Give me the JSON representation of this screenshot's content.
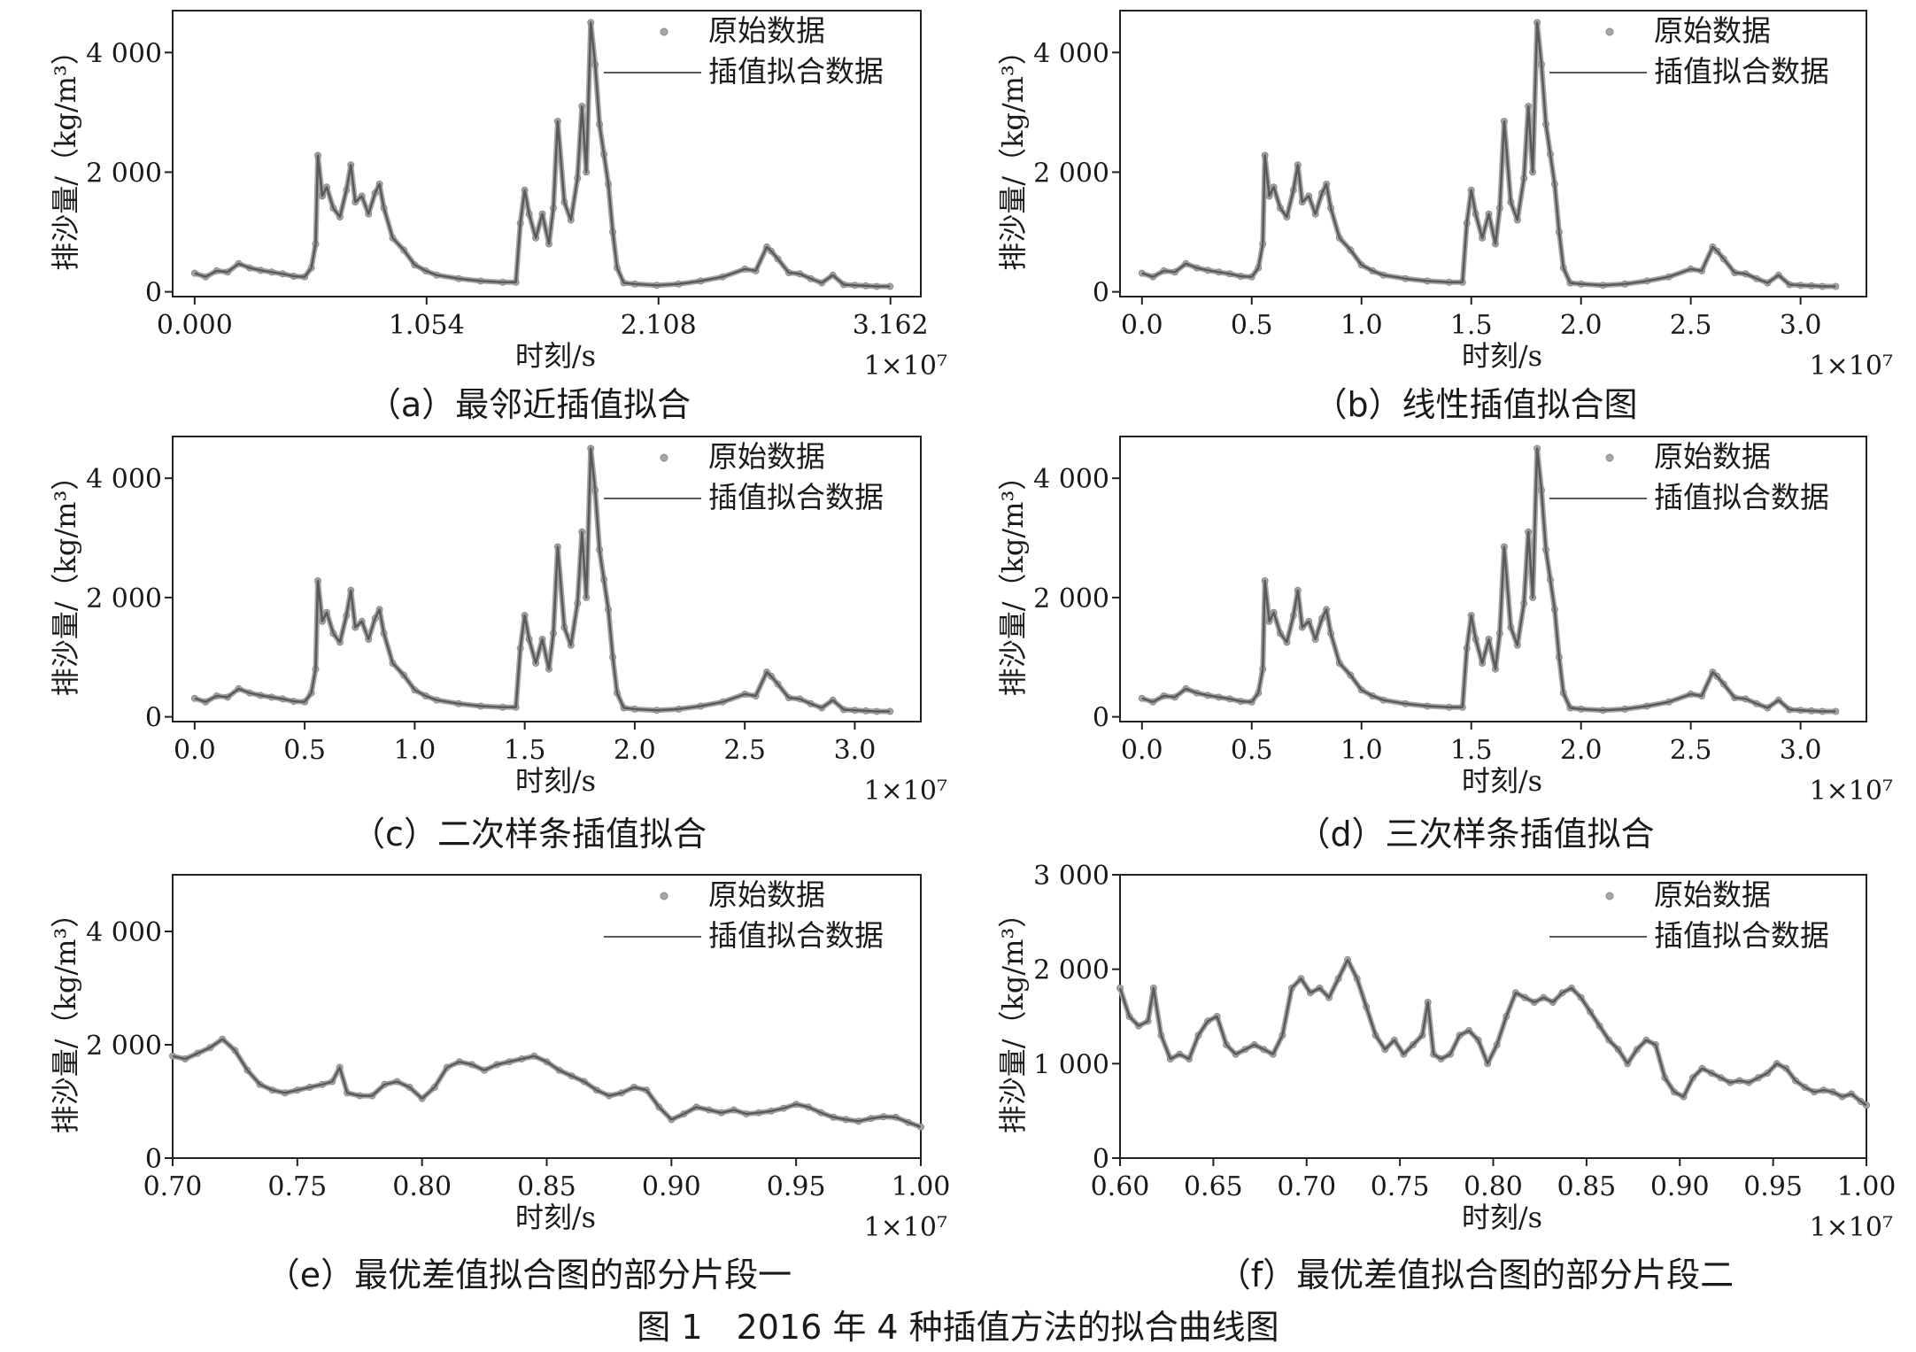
{
  "figure_title": "图 1　2016 年 4 种插值方法的拟合曲线图",
  "colors": {
    "raw": "#a6a6a6",
    "fit": "#5a5a5a",
    "axis": "#222222"
  },
  "chart_data": [
    {
      "id": "a",
      "caption": "（a）最邻近插值拟合",
      "type": "line",
      "xlabel": "时刻/s",
      "ylabel": "排沙量/（kg/m³）",
      "x_multiplier": "1×10⁷",
      "xlim": [
        -0.1,
        3.3
      ],
      "ylim": [
        -80,
        4700
      ],
      "x_ticks": [
        0.0,
        1.054,
        2.108,
        3.162
      ],
      "x_tick_labels": [
        "0.000",
        "1.054",
        "2.108",
        "3.162"
      ],
      "y_ticks": [
        0,
        2000,
        4000
      ],
      "y_tick_labels": [
        "0",
        "2 000",
        "4 000"
      ],
      "legend": [
        "原始数据",
        "插值拟合数据"
      ],
      "legend_position": "top-right",
      "series": [
        {
          "name": "原始数据",
          "style": "markers"
        },
        {
          "name": "插值拟合数据",
          "style": "line"
        }
      ],
      "x": [
        0.0,
        0.05,
        0.1,
        0.15,
        0.2,
        0.25,
        0.3,
        0.35,
        0.4,
        0.45,
        0.5,
        0.53,
        0.55,
        0.56,
        0.58,
        0.6,
        0.63,
        0.66,
        0.69,
        0.71,
        0.73,
        0.76,
        0.79,
        0.82,
        0.84,
        0.86,
        0.9,
        0.95,
        1.0,
        1.05,
        1.1,
        1.2,
        1.3,
        1.4,
        1.46,
        1.48,
        1.5,
        1.52,
        1.55,
        1.58,
        1.61,
        1.63,
        1.65,
        1.68,
        1.71,
        1.74,
        1.76,
        1.78,
        1.8,
        1.82,
        1.84,
        1.86,
        1.88,
        1.9,
        1.92,
        1.95,
        2.0,
        2.1,
        2.2,
        2.3,
        2.4,
        2.5,
        2.55,
        2.6,
        2.62,
        2.65,
        2.7,
        2.75,
        2.8,
        2.85,
        2.9,
        2.95,
        3.0,
        3.05,
        3.1,
        3.16
      ],
      "y": [
        310,
        250,
        350,
        330,
        470,
        400,
        360,
        330,
        300,
        260,
        250,
        400,
        800,
        2280,
        1600,
        1750,
        1400,
        1250,
        1700,
        2120,
        1500,
        1600,
        1300,
        1650,
        1800,
        1400,
        900,
        700,
        450,
        350,
        280,
        220,
        180,
        160,
        160,
        1150,
        1700,
        1300,
        900,
        1300,
        800,
        1400,
        2850,
        1500,
        1200,
        1900,
        3100,
        2000,
        4500,
        3800,
        2800,
        2300,
        1800,
        1000,
        400,
        150,
        130,
        110,
        130,
        180,
        250,
        380,
        350,
        750,
        680,
        550,
        320,
        300,
        220,
        150,
        280,
        120,
        110,
        100,
        90,
        90
      ]
    },
    {
      "id": "b",
      "caption": "（b）线性插值拟合图",
      "type": "line",
      "xlabel": "时刻/s",
      "ylabel": "排沙量/（kg/m³）",
      "x_multiplier": "1×10⁷",
      "xlim": [
        -0.1,
        3.3
      ],
      "ylim": [
        -80,
        4700
      ],
      "x_ticks": [
        0.0,
        0.5,
        1.0,
        1.5,
        2.0,
        2.5,
        3.0
      ],
      "x_tick_labels": [
        "0.0",
        "0.5",
        "1.0",
        "1.5",
        "2.0",
        "2.5",
        "3.0"
      ],
      "y_ticks": [
        0,
        2000,
        4000
      ],
      "y_tick_labels": [
        "0",
        "2 000",
        "4 000"
      ],
      "legend": [
        "原始数据",
        "插值拟合数据"
      ],
      "legend_position": "top-right",
      "series": [
        {
          "name": "原始数据",
          "style": "markers"
        },
        {
          "name": "插值拟合数据",
          "style": "line"
        }
      ],
      "x": [
        0.0,
        0.05,
        0.1,
        0.15,
        0.2,
        0.25,
        0.3,
        0.35,
        0.4,
        0.45,
        0.5,
        0.53,
        0.55,
        0.56,
        0.58,
        0.6,
        0.63,
        0.66,
        0.69,
        0.71,
        0.73,
        0.76,
        0.79,
        0.82,
        0.84,
        0.86,
        0.9,
        0.95,
        1.0,
        1.05,
        1.1,
        1.2,
        1.3,
        1.4,
        1.46,
        1.48,
        1.5,
        1.52,
        1.55,
        1.58,
        1.61,
        1.63,
        1.65,
        1.68,
        1.71,
        1.74,
        1.76,
        1.78,
        1.8,
        1.82,
        1.84,
        1.86,
        1.88,
        1.9,
        1.92,
        1.95,
        2.0,
        2.1,
        2.2,
        2.3,
        2.4,
        2.5,
        2.55,
        2.6,
        2.62,
        2.65,
        2.7,
        2.75,
        2.8,
        2.85,
        2.9,
        2.95,
        3.0,
        3.05,
        3.1,
        3.16
      ],
      "y": [
        310,
        250,
        350,
        330,
        470,
        400,
        360,
        330,
        300,
        260,
        250,
        400,
        800,
        2280,
        1600,
        1750,
        1400,
        1250,
        1700,
        2120,
        1500,
        1600,
        1300,
        1650,
        1800,
        1400,
        900,
        700,
        450,
        350,
        280,
        220,
        180,
        160,
        160,
        1150,
        1700,
        1300,
        900,
        1300,
        800,
        1400,
        2850,
        1500,
        1200,
        1900,
        3100,
        2000,
        4500,
        3800,
        2800,
        2300,
        1800,
        1000,
        400,
        150,
        130,
        110,
        130,
        180,
        250,
        380,
        350,
        750,
        680,
        550,
        320,
        300,
        220,
        150,
        280,
        120,
        110,
        100,
        90,
        90
      ]
    },
    {
      "id": "c",
      "caption": "（c）二次样条插值拟合",
      "type": "line",
      "xlabel": "时刻/s",
      "ylabel": "排沙量/（kg/m³）",
      "x_multiplier": "1×10⁷",
      "xlim": [
        -0.1,
        3.3
      ],
      "ylim": [
        -80,
        4700
      ],
      "x_ticks": [
        0.0,
        0.5,
        1.0,
        1.5,
        2.0,
        2.5,
        3.0
      ],
      "x_tick_labels": [
        "0.0",
        "0.5",
        "1.0",
        "1.5",
        "2.0",
        "2.5",
        "3.0"
      ],
      "y_ticks": [
        0,
        2000,
        4000
      ],
      "y_tick_labels": [
        "0",
        "2 000",
        "4 000"
      ],
      "legend": [
        "原始数据",
        "插值拟合数据"
      ],
      "legend_position": "top-right",
      "series": [
        {
          "name": "原始数据",
          "style": "markers"
        },
        {
          "name": "插值拟合数据",
          "style": "line"
        }
      ],
      "x": [
        0.0,
        0.05,
        0.1,
        0.15,
        0.2,
        0.25,
        0.3,
        0.35,
        0.4,
        0.45,
        0.5,
        0.53,
        0.55,
        0.56,
        0.58,
        0.6,
        0.63,
        0.66,
        0.69,
        0.71,
        0.73,
        0.76,
        0.79,
        0.82,
        0.84,
        0.86,
        0.9,
        0.95,
        1.0,
        1.05,
        1.1,
        1.2,
        1.3,
        1.4,
        1.46,
        1.48,
        1.5,
        1.52,
        1.55,
        1.58,
        1.61,
        1.63,
        1.65,
        1.68,
        1.71,
        1.74,
        1.76,
        1.78,
        1.8,
        1.82,
        1.84,
        1.86,
        1.88,
        1.9,
        1.92,
        1.95,
        2.0,
        2.1,
        2.2,
        2.3,
        2.4,
        2.5,
        2.55,
        2.6,
        2.62,
        2.65,
        2.7,
        2.75,
        2.8,
        2.85,
        2.9,
        2.95,
        3.0,
        3.05,
        3.1,
        3.16
      ],
      "y": [
        310,
        250,
        350,
        330,
        470,
        400,
        360,
        330,
        300,
        260,
        250,
        400,
        800,
        2280,
        1600,
        1750,
        1400,
        1250,
        1700,
        2120,
        1500,
        1600,
        1300,
        1650,
        1800,
        1400,
        900,
        700,
        450,
        350,
        280,
        220,
        180,
        160,
        160,
        1150,
        1700,
        1300,
        900,
        1300,
        800,
        1400,
        2850,
        1500,
        1200,
        1900,
        3100,
        2000,
        4500,
        3800,
        2800,
        2300,
        1800,
        1000,
        400,
        150,
        130,
        110,
        130,
        180,
        250,
        380,
        350,
        750,
        680,
        550,
        320,
        300,
        220,
        150,
        280,
        120,
        110,
        100,
        90,
        90
      ]
    },
    {
      "id": "d",
      "caption": "（d）三次样条插值拟合",
      "type": "line",
      "xlabel": "时刻/s",
      "ylabel": "排沙量/（kg/m³）",
      "x_multiplier": "1×10⁷",
      "xlim": [
        -0.1,
        3.3
      ],
      "ylim": [
        -80,
        4700
      ],
      "x_ticks": [
        0.0,
        0.5,
        1.0,
        1.5,
        2.0,
        2.5,
        3.0
      ],
      "x_tick_labels": [
        "0.0",
        "0.5",
        "1.0",
        "1.5",
        "2.0",
        "2.5",
        "3.0"
      ],
      "y_ticks": [
        0,
        2000,
        4000
      ],
      "y_tick_labels": [
        "0",
        "2 000",
        "4 000"
      ],
      "legend": [
        "原始数据",
        "插值拟合数据"
      ],
      "legend_position": "top-right",
      "series": [
        {
          "name": "原始数据",
          "style": "markers"
        },
        {
          "name": "插值拟合数据",
          "style": "line"
        }
      ],
      "x": [
        0.0,
        0.05,
        0.1,
        0.15,
        0.2,
        0.25,
        0.3,
        0.35,
        0.4,
        0.45,
        0.5,
        0.53,
        0.55,
        0.56,
        0.58,
        0.6,
        0.63,
        0.66,
        0.69,
        0.71,
        0.73,
        0.76,
        0.79,
        0.82,
        0.84,
        0.86,
        0.9,
        0.95,
        1.0,
        1.05,
        1.1,
        1.2,
        1.3,
        1.4,
        1.46,
        1.48,
        1.5,
        1.52,
        1.55,
        1.58,
        1.61,
        1.63,
        1.65,
        1.68,
        1.71,
        1.74,
        1.76,
        1.78,
        1.8,
        1.82,
        1.84,
        1.86,
        1.88,
        1.9,
        1.92,
        1.95,
        2.0,
        2.1,
        2.2,
        2.3,
        2.4,
        2.5,
        2.55,
        2.6,
        2.62,
        2.65,
        2.7,
        2.75,
        2.8,
        2.85,
        2.9,
        2.95,
        3.0,
        3.05,
        3.1,
        3.16
      ],
      "y": [
        310,
        250,
        350,
        330,
        470,
        400,
        360,
        330,
        300,
        260,
        250,
        400,
        800,
        2280,
        1600,
        1750,
        1400,
        1250,
        1700,
        2120,
        1500,
        1600,
        1300,
        1650,
        1800,
        1400,
        900,
        700,
        450,
        350,
        280,
        220,
        180,
        160,
        160,
        1150,
        1700,
        1300,
        900,
        1300,
        800,
        1400,
        2850,
        1500,
        1200,
        1900,
        3100,
        2000,
        4500,
        3800,
        2800,
        2300,
        1800,
        1000,
        400,
        150,
        130,
        110,
        130,
        180,
        250,
        380,
        350,
        750,
        680,
        550,
        320,
        300,
        220,
        150,
        280,
        120,
        110,
        100,
        90,
        90
      ]
    },
    {
      "id": "e",
      "caption": "（e）最优差值拟合图的部分片段一",
      "type": "line",
      "xlabel": "时刻/s",
      "ylabel": "排沙量/（kg/m³）",
      "x_multiplier": "1×10⁷",
      "xlim": [
        0.7,
        1.0
      ],
      "ylim": [
        0,
        5000
      ],
      "x_ticks": [
        0.7,
        0.75,
        0.8,
        0.85,
        0.9,
        0.95,
        1.0
      ],
      "x_tick_labels": [
        "0.70",
        "0.75",
        "0.80",
        "0.85",
        "0.90",
        "0.95",
        "1.00"
      ],
      "y_ticks": [
        0,
        2000,
        4000
      ],
      "y_tick_labels": [
        "0",
        "2 000",
        "4 000"
      ],
      "legend": [
        "原始数据",
        "插值拟合数据"
      ],
      "legend_position": "top-right",
      "series": [
        {
          "name": "原始数据",
          "style": "markers"
        },
        {
          "name": "插值拟合数据",
          "style": "line"
        }
      ],
      "x": [
        0.7,
        0.705,
        0.71,
        0.715,
        0.72,
        0.725,
        0.73,
        0.735,
        0.74,
        0.745,
        0.75,
        0.755,
        0.76,
        0.764,
        0.767,
        0.77,
        0.775,
        0.78,
        0.785,
        0.79,
        0.795,
        0.8,
        0.805,
        0.81,
        0.815,
        0.82,
        0.825,
        0.83,
        0.835,
        0.84,
        0.845,
        0.85,
        0.855,
        0.86,
        0.865,
        0.87,
        0.875,
        0.88,
        0.885,
        0.89,
        0.895,
        0.9,
        0.905,
        0.91,
        0.915,
        0.92,
        0.925,
        0.93,
        0.935,
        0.94,
        0.945,
        0.95,
        0.955,
        0.96,
        0.965,
        0.97,
        0.975,
        0.98,
        0.985,
        0.99,
        0.995,
        1.0
      ],
      "y": [
        1800,
        1750,
        1850,
        1950,
        2100,
        1900,
        1550,
        1300,
        1200,
        1150,
        1200,
        1250,
        1300,
        1350,
        1600,
        1150,
        1100,
        1100,
        1300,
        1350,
        1250,
        1050,
        1250,
        1600,
        1700,
        1650,
        1550,
        1650,
        1700,
        1750,
        1800,
        1700,
        1550,
        1450,
        1350,
        1200,
        1100,
        1150,
        1250,
        1200,
        900,
        680,
        780,
        900,
        850,
        800,
        850,
        780,
        800,
        830,
        880,
        950,
        900,
        800,
        720,
        680,
        650,
        700,
        730,
        720,
        630,
        550
      ]
    },
    {
      "id": "f",
      "caption": "（f）最优差值拟合图的部分片段二",
      "type": "line",
      "xlabel": "时刻/s",
      "ylabel": "排沙量/（kg/m³）",
      "x_multiplier": "1×10⁷",
      "xlim": [
        0.6,
        1.0
      ],
      "ylim": [
        0,
        3000
      ],
      "x_ticks": [
        0.6,
        0.65,
        0.7,
        0.75,
        0.8,
        0.85,
        0.9,
        0.95,
        1.0
      ],
      "x_tick_labels": [
        "0.60",
        "0.65",
        "0.70",
        "0.75",
        "0.80",
        "0.85",
        "0.90",
        "0.95",
        "1.00"
      ],
      "y_ticks": [
        0,
        1000,
        2000,
        3000
      ],
      "y_tick_labels": [
        "0",
        "1 000",
        "2 000",
        "3 000"
      ],
      "legend": [
        "原始数据",
        "插值拟合数据"
      ],
      "legend_position": "top-right",
      "series": [
        {
          "name": "原始数据",
          "style": "markers"
        },
        {
          "name": "插值拟合数据",
          "style": "line"
        }
      ],
      "x": [
        0.6,
        0.605,
        0.61,
        0.615,
        0.618,
        0.622,
        0.627,
        0.632,
        0.637,
        0.642,
        0.647,
        0.652,
        0.657,
        0.662,
        0.667,
        0.672,
        0.677,
        0.682,
        0.687,
        0.692,
        0.697,
        0.702,
        0.707,
        0.712,
        0.717,
        0.722,
        0.727,
        0.732,
        0.737,
        0.742,
        0.747,
        0.752,
        0.757,
        0.762,
        0.765,
        0.768,
        0.772,
        0.777,
        0.782,
        0.787,
        0.792,
        0.797,
        0.802,
        0.807,
        0.812,
        0.817,
        0.822,
        0.827,
        0.832,
        0.837,
        0.842,
        0.847,
        0.852,
        0.857,
        0.862,
        0.867,
        0.872,
        0.877,
        0.882,
        0.887,
        0.892,
        0.897,
        0.902,
        0.907,
        0.912,
        0.917,
        0.922,
        0.927,
        0.932,
        0.937,
        0.942,
        0.947,
        0.952,
        0.957,
        0.962,
        0.967,
        0.972,
        0.977,
        0.982,
        0.987,
        0.992,
        0.997,
        1.0
      ],
      "y": [
        1800,
        1500,
        1400,
        1450,
        1800,
        1300,
        1050,
        1100,
        1050,
        1300,
        1450,
        1500,
        1200,
        1100,
        1150,
        1200,
        1150,
        1100,
        1300,
        1800,
        1900,
        1750,
        1800,
        1700,
        1900,
        2100,
        1900,
        1600,
        1300,
        1150,
        1250,
        1100,
        1200,
        1300,
        1650,
        1100,
        1050,
        1100,
        1300,
        1350,
        1250,
        1000,
        1200,
        1500,
        1750,
        1700,
        1650,
        1700,
        1650,
        1750,
        1800,
        1700,
        1550,
        1400,
        1250,
        1150,
        1000,
        1150,
        1250,
        1200,
        850,
        700,
        650,
        850,
        950,
        900,
        850,
        800,
        820,
        800,
        850,
        900,
        1000,
        950,
        820,
        750,
        700,
        720,
        700,
        650,
        680,
        600,
        560
      ]
    }
  ]
}
